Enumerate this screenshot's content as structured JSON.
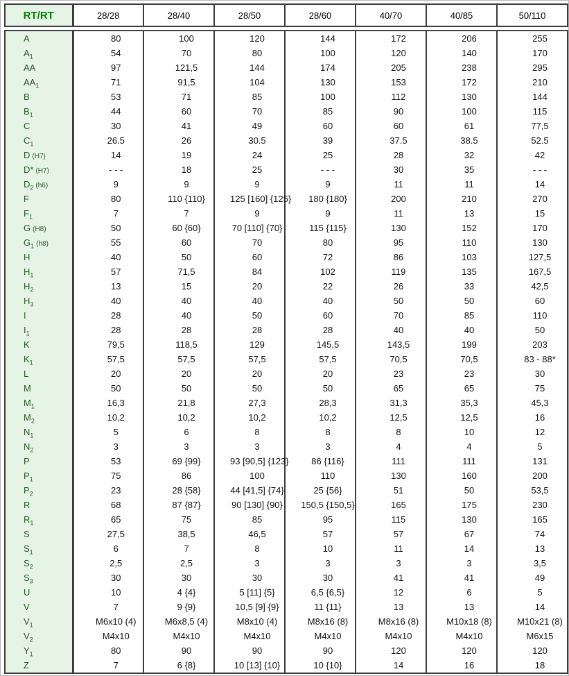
{
  "colors": {
    "border": "#3c3c3c",
    "label_background": "#e6f4e6",
    "label_text": "#265926",
    "corner_text": "#008000",
    "value_text": "#111111"
  },
  "table": {
    "corner_label": "RT/RT",
    "columns": [
      "28/28",
      "28/40",
      "28/50",
      "28/60",
      "40/70",
      "40/85",
      "50/110"
    ],
    "rows": [
      {
        "label": {
          "b": "A",
          "s": "",
          "n": ""
        },
        "values": [
          "80",
          "100",
          "120",
          "144",
          "172",
          "206",
          "255"
        ]
      },
      {
        "label": {
          "b": "A",
          "s": "1",
          "n": ""
        },
        "values": [
          "54",
          "70",
          "80",
          "100",
          "120",
          "140",
          "170"
        ]
      },
      {
        "label": {
          "b": "AA",
          "s": "",
          "n": ""
        },
        "values": [
          "97",
          "121,5",
          "144",
          "174",
          "205",
          "238",
          "295"
        ]
      },
      {
        "label": {
          "b": "AA",
          "s": "1",
          "n": ""
        },
        "values": [
          "71",
          "91,5",
          "104",
          "130",
          "153",
          "172",
          "210"
        ]
      },
      {
        "label": {
          "b": "B",
          "s": "",
          "n": ""
        },
        "values": [
          "53",
          "71",
          "85",
          "100",
          "112",
          "130",
          "144"
        ]
      },
      {
        "label": {
          "b": "B",
          "s": "1",
          "n": ""
        },
        "values": [
          "44",
          "60",
          "70",
          "85",
          "90",
          "100",
          "115"
        ]
      },
      {
        "label": {
          "b": "C",
          "s": "",
          "n": ""
        },
        "values": [
          "30",
          "41",
          "49",
          "60",
          "60",
          "61",
          "77,5"
        ]
      },
      {
        "label": {
          "b": "C",
          "s": "1",
          "n": ""
        },
        "values": [
          "26.5",
          "26",
          "30.5",
          "39",
          "37.5",
          "38.5",
          "52.5"
        ]
      },
      {
        "label": {
          "b": "D",
          "s": "",
          "n": "(H7)"
        },
        "values": [
          "14",
          "19",
          "24",
          "25",
          "28",
          "32",
          "42"
        ]
      },
      {
        "label": {
          "b": "D*",
          "s": "",
          "n": "(H7)"
        },
        "values": [
          "- - -",
          "18",
          "25",
          "- - -",
          "30",
          "35",
          "- - -"
        ]
      },
      {
        "label": {
          "b": "D",
          "s": "2",
          "n": "(h6)"
        },
        "values": [
          "9",
          "9",
          "9",
          "9",
          "11",
          "11",
          "14"
        ]
      },
      {
        "label": {
          "b": "F",
          "s": "",
          "n": ""
        },
        "values": [
          "80",
          "110 {110}",
          "125 [160] {125}",
          "180 {180}",
          "200",
          "210",
          "270"
        ]
      },
      {
        "label": {
          "b": "F",
          "s": "1",
          "n": ""
        },
        "values": [
          "7",
          "7",
          "9",
          "9",
          "11",
          "13",
          "15"
        ]
      },
      {
        "label": {
          "b": "G",
          "s": "",
          "n": "(H8)"
        },
        "values": [
          "50",
          "60 {60}",
          "70 [110] {70}",
          "115 {115}",
          "130",
          "152",
          "170"
        ]
      },
      {
        "label": {
          "b": "G",
          "s": "1",
          "n": "(h8)"
        },
        "values": [
          "55",
          "60",
          "70",
          "80",
          "95",
          "110",
          "130"
        ]
      },
      {
        "label": {
          "b": "H",
          "s": "",
          "n": ""
        },
        "values": [
          "40",
          "50",
          "60",
          "72",
          "86",
          "103",
          "127,5"
        ]
      },
      {
        "label": {
          "b": "H",
          "s": "1",
          "n": ""
        },
        "values": [
          "57",
          "71,5",
          "84",
          "102",
          "119",
          "135",
          "167,5"
        ]
      },
      {
        "label": {
          "b": "H",
          "s": "2",
          "n": ""
        },
        "values": [
          "13",
          "15",
          "20",
          "22",
          "26",
          "33",
          "42,5"
        ]
      },
      {
        "label": {
          "b": "H",
          "s": "3",
          "n": ""
        },
        "values": [
          "40",
          "40",
          "40",
          "40",
          "50",
          "50",
          "60"
        ]
      },
      {
        "label": {
          "b": "I",
          "s": "",
          "n": ""
        },
        "values": [
          "28",
          "40",
          "50",
          "60",
          "70",
          "85",
          "110"
        ]
      },
      {
        "label": {
          "b": "I",
          "s": "1",
          "n": ""
        },
        "values": [
          "28",
          "28",
          "28",
          "28",
          "40",
          "40",
          "50"
        ]
      },
      {
        "label": {
          "b": "K",
          "s": "",
          "n": ""
        },
        "values": [
          "79,5",
          "118,5",
          "129",
          "145,5",
          "143,5",
          "199",
          "203"
        ]
      },
      {
        "label": {
          "b": "K",
          "s": "1",
          "n": ""
        },
        "values": [
          "57,5",
          "57,5",
          "57,5",
          "57,5",
          "70,5",
          "70,5",
          "83 - 88*"
        ]
      },
      {
        "label": {
          "b": "L",
          "s": "",
          "n": ""
        },
        "values": [
          "20",
          "20",
          "20",
          "20",
          "23",
          "23",
          "30"
        ]
      },
      {
        "label": {
          "b": "M",
          "s": "",
          "n": ""
        },
        "values": [
          "50",
          "50",
          "50",
          "50",
          "65",
          "65",
          "75"
        ]
      },
      {
        "label": {
          "b": "M",
          "s": "1",
          "n": ""
        },
        "values": [
          "16,3",
          "21,8",
          "27,3",
          "28,3",
          "31,3",
          "35,3",
          "45,3"
        ]
      },
      {
        "label": {
          "b": "M",
          "s": "2",
          "n": ""
        },
        "values": [
          "10,2",
          "10,2",
          "10,2",
          "10,2",
          "12,5",
          "12,5",
          "16"
        ]
      },
      {
        "label": {
          "b": "N",
          "s": "1",
          "n": ""
        },
        "values": [
          "5",
          "6",
          "8",
          "8",
          "8",
          "10",
          "12"
        ]
      },
      {
        "label": {
          "b": "N",
          "s": "2",
          "n": ""
        },
        "values": [
          "3",
          "3",
          "3",
          "3",
          "4",
          "4",
          "5"
        ]
      },
      {
        "label": {
          "b": "P",
          "s": "",
          "n": ""
        },
        "values": [
          "53",
          "69 {99}",
          "93 [90,5] {123}",
          "86 {116}",
          "111",
          "111",
          "131"
        ]
      },
      {
        "label": {
          "b": "P",
          "s": "1",
          "n": ""
        },
        "values": [
          "75",
          "86",
          "100",
          "110",
          "130",
          "160",
          "200"
        ]
      },
      {
        "label": {
          "b": "P",
          "s": "2",
          "n": ""
        },
        "values": [
          "23",
          "28 {58}",
          "44 [41,5] {74}",
          "25 {56}",
          "51",
          "50",
          "53,5"
        ]
      },
      {
        "label": {
          "b": "R",
          "s": "",
          "n": ""
        },
        "values": [
          "68",
          "87 {87}",
          "90 [130] {90}",
          "150,5 {150,5}",
          "165",
          "175",
          "230"
        ]
      },
      {
        "label": {
          "b": "R",
          "s": "1",
          "n": ""
        },
        "values": [
          "65",
          "75",
          "85",
          "95",
          "115",
          "130",
          "165"
        ]
      },
      {
        "label": {
          "b": "S",
          "s": "",
          "n": ""
        },
        "values": [
          "27,5",
          "38,5",
          "46,5",
          "57",
          "57",
          "67",
          "74"
        ]
      },
      {
        "label": {
          "b": "S",
          "s": "1",
          "n": ""
        },
        "values": [
          "6",
          "7",
          "8",
          "10",
          "11",
          "14",
          "13"
        ]
      },
      {
        "label": {
          "b": "S",
          "s": "2",
          "n": ""
        },
        "values": [
          "2,5",
          "2,5",
          "3",
          "3",
          "3",
          "3",
          "3,5"
        ]
      },
      {
        "label": {
          "b": "S",
          "s": "3",
          "n": ""
        },
        "values": [
          "30",
          "30",
          "30",
          "30",
          "41",
          "41",
          "49"
        ]
      },
      {
        "label": {
          "b": "U",
          "s": "",
          "n": ""
        },
        "values": [
          "10",
          "4 {4}",
          "5 [11] {5}",
          "6,5 {6,5}",
          "12",
          "6",
          "5"
        ]
      },
      {
        "label": {
          "b": "V",
          "s": "",
          "n": ""
        },
        "values": [
          "7",
          "9 {9}",
          "10,5 [9] {9}",
          "11 {11}",
          "13",
          "13",
          "14"
        ]
      },
      {
        "label": {
          "b": "V",
          "s": "1",
          "n": ""
        },
        "values": [
          "M6x10 (4)",
          "M6x8,5 (4)",
          "M8x10 (4)",
          "M8x16 (8)",
          "M8x16 (8)",
          "M10x18 (8)",
          "M10x21 (8)"
        ]
      },
      {
        "label": {
          "b": "V",
          "s": "2",
          "n": ""
        },
        "values": [
          "M4x10",
          "M4x10",
          "M4x10",
          "M4x10",
          "M4x10",
          "M4x10",
          "M6x15"
        ]
      },
      {
        "label": {
          "b": "Y",
          "s": "1",
          "n": ""
        },
        "values": [
          "80",
          "90",
          "90",
          "90",
          "120",
          "120",
          "120"
        ]
      },
      {
        "label": {
          "b": "Z",
          "s": "",
          "n": ""
        },
        "values": [
          "7",
          "6 {8}",
          "10 [13] {10}",
          "10 {10}",
          "14",
          "16",
          "18"
        ]
      }
    ]
  }
}
